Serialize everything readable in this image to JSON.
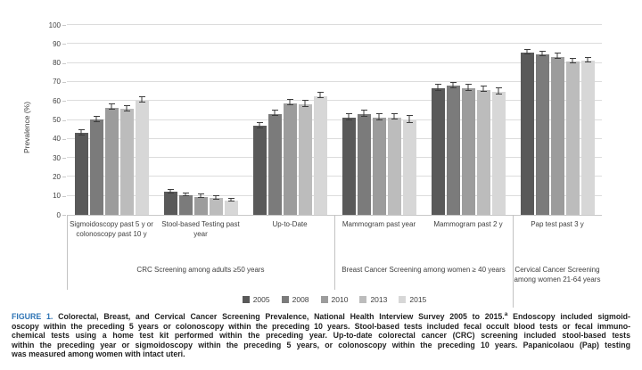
{
  "chart_data": {
    "type": "bar",
    "title": "",
    "ylabel": "Prevalence (%)",
    "ylim": [
      0,
      100
    ],
    "yticks": [
      0,
      10,
      20,
      30,
      40,
      50,
      60,
      70,
      80,
      90,
      100
    ],
    "grid": true,
    "error_bars": true,
    "legend_position": "bottom",
    "series_names": [
      "2005",
      "2008",
      "2010",
      "2013",
      "2015"
    ],
    "bar_colors": [
      "#595959",
      "#7b7b7b",
      "#9c9c9c",
      "#bcbcbc",
      "#d7d7d7"
    ],
    "sections": [
      {
        "label": "CRC Screening  among adults ≥50 years",
        "groups": [
          {
            "label": "Sigmoidoscopy past 5 y or colonoscopy past 10 y",
            "values": [
              43.0,
              50.1,
              56.4,
              55.8,
              60.3
            ],
            "errors": [
              1.2,
              1.2,
              1.2,
              1.2,
              1.3
            ]
          },
          {
            "label": "Stool-based Testing past year",
            "values": [
              12.1,
              10.4,
              9.6,
              8.8,
              7.4
            ],
            "errors": [
              0.7,
              0.6,
              0.6,
              0.6,
              0.5
            ]
          },
          {
            "label": "Up-to-Date",
            "values": [
              46.8,
              53.1,
              58.8,
              58.2,
              62.6
            ],
            "errors": [
              1.2,
              1.2,
              1.2,
              1.2,
              1.3
            ]
          }
        ]
      },
      {
        "label": "Breast Cancer Screening among women ≥ 40 years",
        "groups": [
          {
            "label": "Mammogram past year",
            "values": [
              51.2,
              53.0,
              51.1,
              51.4,
              50.0
            ],
            "errors": [
              1.3,
              1.3,
              1.3,
              1.3,
              1.5
            ]
          },
          {
            "label": "Mammogram past 2 y",
            "values": [
              66.8,
              67.9,
              66.8,
              65.9,
              64.8
            ],
            "errors": [
              1.3,
              1.2,
              1.3,
              1.3,
              1.5
            ]
          }
        ]
      },
      {
        "label": "Cervical Cancer Screening among women 21-64 years",
        "groups": [
          {
            "label": "Pap test past 3 y",
            "values": [
              85.5,
              84.5,
              83.3,
              80.7,
              81.4
            ],
            "errors": [
              0.8,
              0.9,
              1.0,
              1.1,
              1.0
            ]
          }
        ]
      }
    ]
  },
  "caption": {
    "label": "FIGURE 1.",
    "line1_before_sup": " Colorectal, Breast, and Cervical Cancer Screening Prevalence, National Health Interview Survey 2005 to 2015.",
    "sup": "a",
    "line1_after_sup": " Endoscopy included sigmoid-",
    "lines": [
      "oscopy within the preceding 5 years or colonoscopy within the preceding 10 years. Stool-based tests included fecal occult blood tests or fecal immuno-",
      "chemical tests using a home test kit performed within the preceding year. Up-to-date colorectal cancer (CRC) screening included stool-based tests",
      "within the preceding year or sigmoidoscopy within the preceding 5 years, or colonoscopy within the preceding 10 years. Papanicolaou (Pap) testing",
      "was measured among women with intact uteri."
    ]
  }
}
